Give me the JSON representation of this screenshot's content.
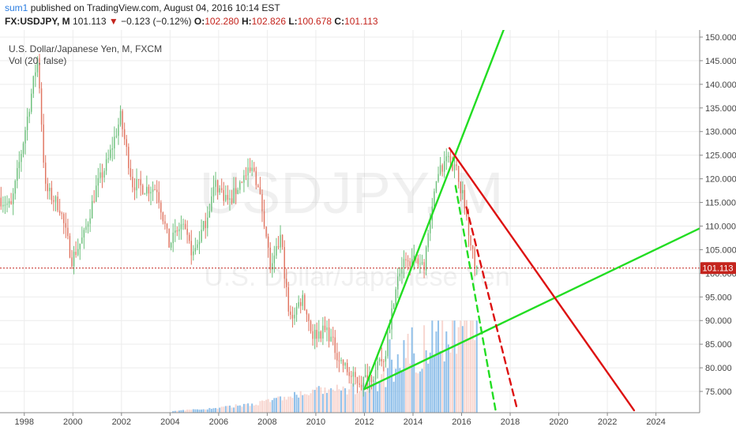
{
  "header": {
    "user": "sum1",
    "published": "published on TradingView.com, August 04, 2016 10:14 EST",
    "symbol": "FX:USDJPY, M",
    "last": "101.113",
    "change": "−0.123 (−0.12%)",
    "o_label": "O:",
    "o_value": "102.280",
    "h_label": "H:",
    "h_value": "102.826",
    "l_label": "L:",
    "l_value": "100.678",
    "c_label": "C:",
    "c_value": "101.113"
  },
  "legend": {
    "title": "U.S. Dollar/Japanese Yen, M, FXCM",
    "indicator": "Vol (20, false)"
  },
  "watermark": {
    "line1": "USDJPY, M",
    "line2": "U.S. Dollar/Japanese Yen"
  },
  "price_badge": "101.113",
  "colors": {
    "up": "#6bbf7a",
    "down": "#e0735f",
    "volume": "#7fb6e6",
    "trend_green": "#22dd22",
    "trend_red": "#dd1111",
    "price_line": "#c4241d",
    "badge": "#c4241d"
  },
  "chart_data": {
    "type": "candlestick",
    "x_range": [
      1997.0,
      2025.8
    ],
    "y_range": [
      70.5,
      151.5
    ],
    "x_ticks": [
      "1998",
      "2000",
      "2002",
      "2004",
      "2006",
      "2008",
      "2010",
      "2012",
      "2014",
      "2016",
      "2018",
      "2020",
      "2022",
      "2024"
    ],
    "y_ticks": [
      "75.000",
      "80.000",
      "85.000",
      "90.000",
      "95.000",
      "100.000",
      "105.000",
      "110.000",
      "115.000",
      "120.000",
      "125.000",
      "130.000",
      "135.000",
      "140.000",
      "145.000",
      "150.000"
    ],
    "last_price": 101.113,
    "price_anchors": [
      [
        1997.0,
        116
      ],
      [
        1997.5,
        114
      ],
      [
        1998.0,
        128
      ],
      [
        1998.6,
        146
      ],
      [
        1998.9,
        118
      ],
      [
        1999.5,
        114
      ],
      [
        2000.0,
        103
      ],
      [
        2000.5,
        108
      ],
      [
        2001.0,
        118
      ],
      [
        2001.5,
        124
      ],
      [
        2002.0,
        133
      ],
      [
        2002.5,
        119
      ],
      [
        2003.0,
        118
      ],
      [
        2003.5,
        118
      ],
      [
        2004.0,
        106
      ],
      [
        2004.5,
        110
      ],
      [
        2005.0,
        104
      ],
      [
        2005.5,
        111
      ],
      [
        2005.9,
        119
      ],
      [
        2006.5,
        115
      ],
      [
        2007.0,
        120
      ],
      [
        2007.5,
        122
      ],
      [
        2007.9,
        112
      ],
      [
        2008.2,
        100
      ],
      [
        2008.6,
        108
      ],
      [
        2008.95,
        90
      ],
      [
        2009.5,
        95
      ],
      [
        2009.9,
        87
      ],
      [
        2010.5,
        88
      ],
      [
        2011.0,
        82
      ],
      [
        2011.5,
        78
      ],
      [
        2011.9,
        77
      ],
      [
        2012.5,
        79
      ],
      [
        2012.9,
        83
      ],
      [
        2013.4,
        100
      ],
      [
        2013.9,
        103
      ],
      [
        2014.5,
        102
      ],
      [
        2014.95,
        120
      ],
      [
        2015.5,
        124
      ],
      [
        2015.9,
        121
      ],
      [
        2016.25,
        112
      ],
      [
        2016.6,
        101
      ]
    ],
    "volume_anchors": [
      [
        2004.0,
        0.3
      ],
      [
        2006.0,
        1.0
      ],
      [
        2007.5,
        2.0
      ],
      [
        2009.0,
        3.5
      ],
      [
        2010.0,
        4.5
      ],
      [
        2011.5,
        5.0
      ],
      [
        2012.5,
        5.5
      ],
      [
        2013.0,
        8.0
      ],
      [
        2014.0,
        10.5
      ],
      [
        2015.0,
        13.5
      ],
      [
        2015.8,
        16.5
      ],
      [
        2016.55,
        19.5
      ]
    ],
    "volume_max_price_units": 19.5,
    "trend_lines": [
      {
        "color": "green",
        "style": "solid",
        "from": [
          2012.0,
          75.5
        ],
        "to": [
          2019.5,
          175.0
        ]
      },
      {
        "color": "green",
        "style": "solid",
        "from": [
          2012.0,
          75.5
        ],
        "to": [
          2025.8,
          109.5
        ]
      },
      {
        "color": "red",
        "style": "solid",
        "from": [
          2015.5,
          126.5
        ],
        "to": [
          2023.1,
          71.0
        ]
      },
      {
        "color": "green",
        "style": "dashed",
        "from": [
          2015.75,
          118.5
        ],
        "to": [
          2017.4,
          71.0
        ]
      },
      {
        "color": "red",
        "style": "dashed",
        "from": [
          2016.2,
          114.0
        ],
        "to": [
          2018.3,
          71.0
        ]
      }
    ]
  }
}
